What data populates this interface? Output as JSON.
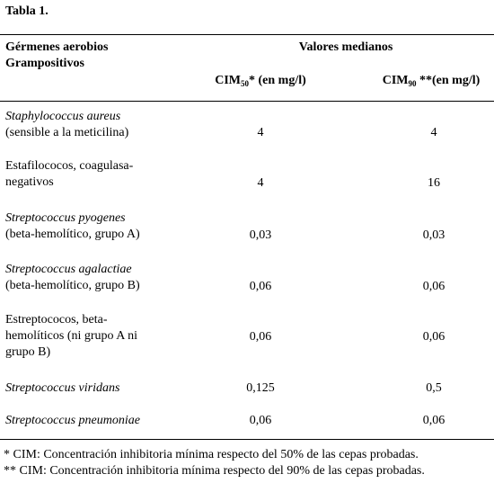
{
  "title": "Tabla 1.",
  "header": {
    "col0": [
      "Gérmenes aerobios",
      "Grampositivos"
    ],
    "group": "Valores medianos",
    "col1": {
      "base": "CIM",
      "sub": "50",
      "rest": "* (en mg/l)"
    },
    "col2": {
      "base": "CIM",
      "sub": "90",
      "rest": " **(en mg/l)"
    }
  },
  "table": {
    "rows": [
      {
        "species": "Staphylococcus aureus",
        "note": "(sensible a la meticilina)",
        "cim50": "4",
        "cim90": "4"
      },
      {
        "species": "Estafilococos, coagulasa-negativos",
        "cim50": "4",
        "cim90": "16"
      },
      {
        "species": "Streptococcus pyogenes",
        "note": "(beta-hemolítico, grupo A)",
        "cim50": "0,03",
        "cim90": "0,03"
      },
      {
        "species": "Streptococcus agalactiae",
        "note": "(beta-hemolítico, grupo B)",
        "cim50": "0,06",
        "cim90": "0,06"
      },
      {
        "species": "Estreptococos, beta-hemolíticos (ni grupo A ni grupo B)",
        "cim50": "0,06",
        "cim90": "0,06"
      },
      {
        "species": "Streptococcus viridans",
        "cim50": "0,125",
        "cim90": "0,5"
      },
      {
        "species": "Streptococcus pneumoniae",
        "cim50": "0,06",
        "cim90": "0,06"
      }
    ]
  },
  "footnotes": [
    "* CIM: Concentración inhibitoria mínima respecto del 50% de las cepas probadas.",
    "** CIM: Concentración inhibitoria mínima respecto del 90% de las cepas probadas."
  ]
}
